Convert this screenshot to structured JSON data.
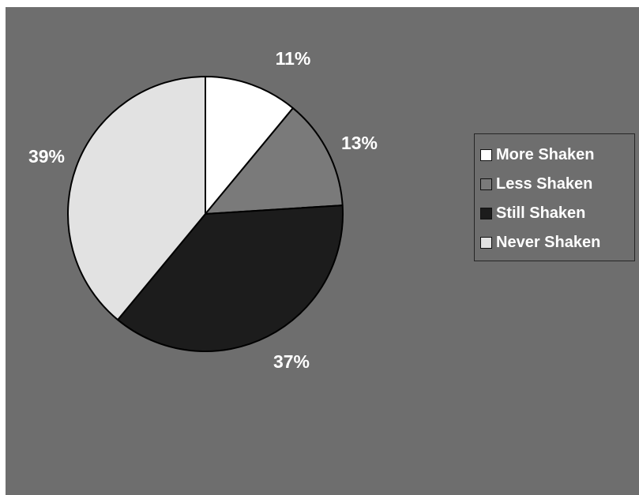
{
  "chart_data": {
    "type": "pie",
    "title": "",
    "slices": [
      {
        "label": "More Shaken",
        "value": 11,
        "display": "11%",
        "color": "#ffffff"
      },
      {
        "label": "Less Shaken",
        "value": 13,
        "display": "13%",
        "color": "#7a7a7a"
      },
      {
        "label": "Still Shaken",
        "value": 37,
        "display": "37%",
        "color": "#1c1c1c"
      },
      {
        "label": "Never Shaken",
        "value": 39,
        "display": "39%",
        "color": "#e2e2e2"
      }
    ],
    "start": "12 o'clock",
    "direction": "clockwise",
    "legend_position": "right",
    "background_color": "#6e6e6e",
    "label_color": "#ffffff"
  }
}
